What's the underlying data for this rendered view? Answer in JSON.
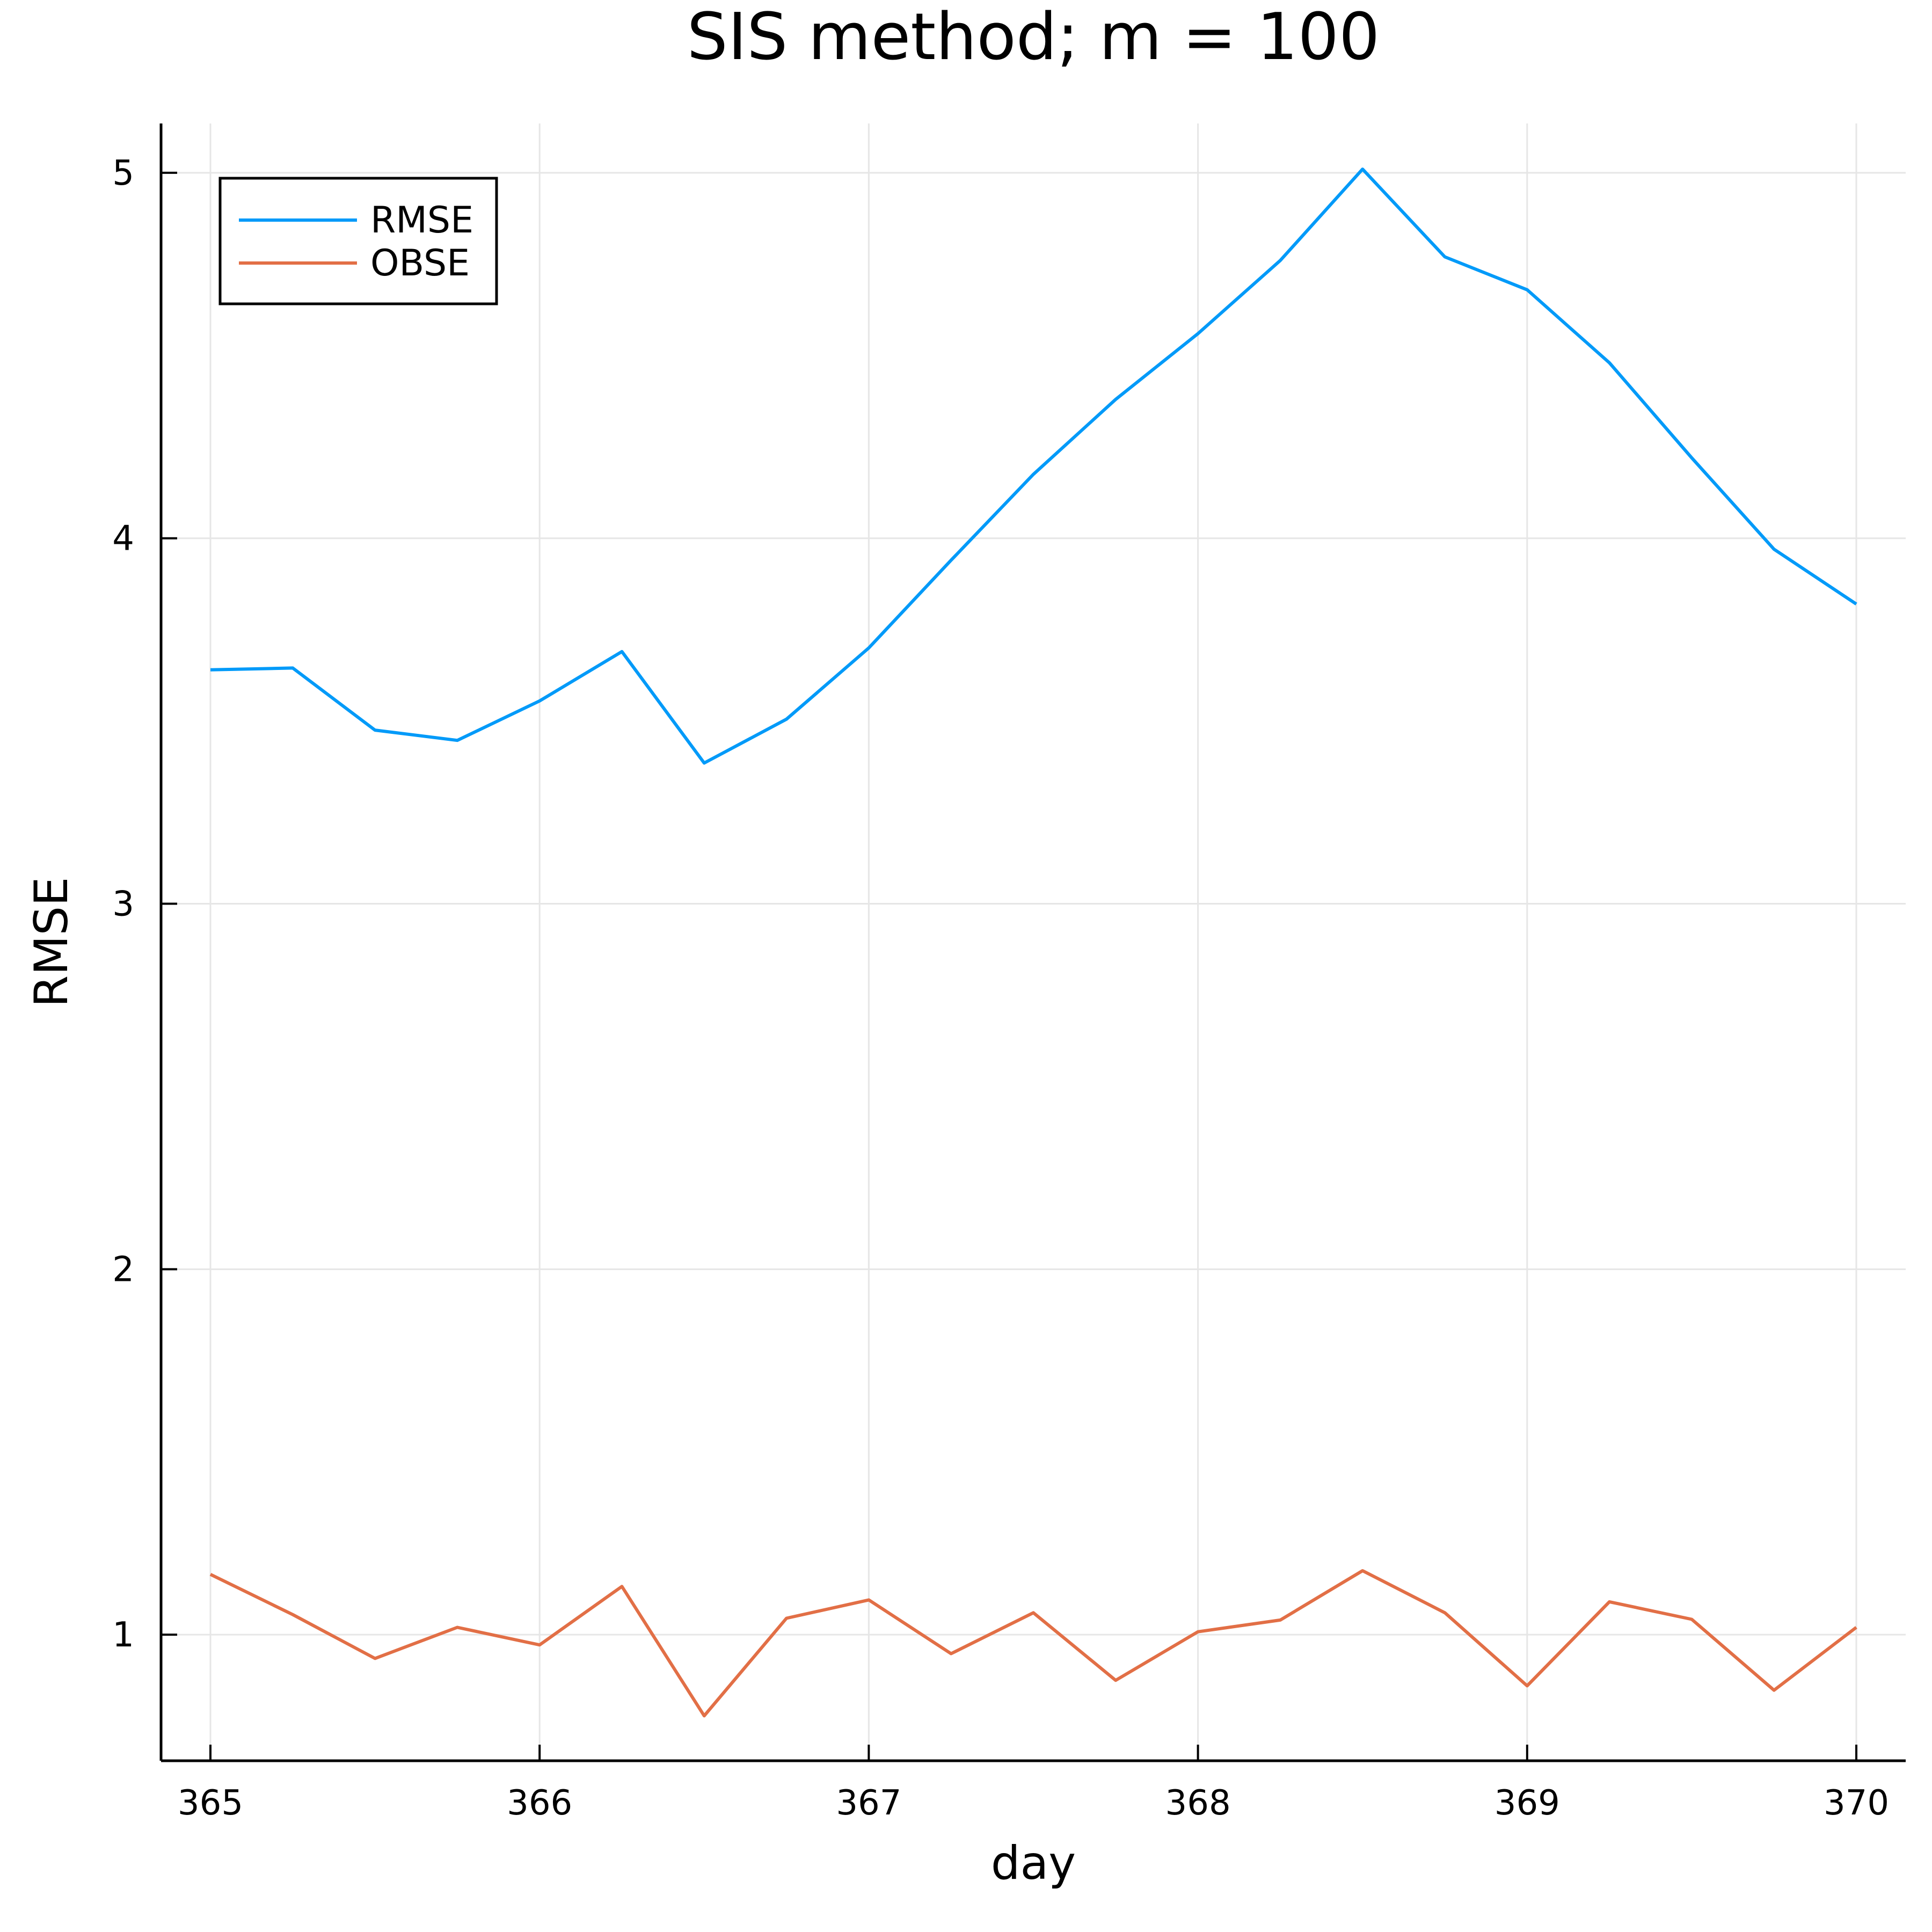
{
  "chart_data": {
    "type": "line",
    "title": "SIS method; m = 100",
    "xlabel": "day",
    "ylabel": "RMSE",
    "xlim": [
      364.85,
      370.15
    ],
    "ylim": [
      0.655,
      5.135
    ],
    "xticks": [
      365,
      366,
      367,
      368,
      369,
      370
    ],
    "yticks": [
      1,
      2,
      3,
      4,
      5
    ],
    "grid": true,
    "legend_position": "top-left",
    "x": [
      365,
      365.25,
      365.5,
      365.75,
      366,
      366.25,
      366.5,
      366.75,
      367,
      367.25,
      367.5,
      367.75,
      368,
      368.25,
      368.5,
      368.75,
      369,
      369.25,
      369.5,
      369.75,
      370
    ],
    "series": [
      {
        "name": "RMSE",
        "color": "#009af9",
        "values": [
          3.64,
          3.645,
          3.475,
          3.447,
          3.555,
          3.69,
          3.385,
          3.505,
          3.7,
          3.94,
          4.175,
          4.38,
          4.56,
          4.76,
          5.01,
          4.77,
          4.68,
          4.48,
          4.22,
          3.97,
          3.82
        ]
      },
      {
        "name": "OBSE",
        "color": "#e26f46",
        "values": [
          1.165,
          1.055,
          0.935,
          1.02,
          0.972,
          1.132,
          0.778,
          1.045,
          1.095,
          0.948,
          1.06,
          0.875,
          1.008,
          1.04,
          1.175,
          1.06,
          0.86,
          1.09,
          1.042,
          0.848,
          1.02
        ]
      }
    ],
    "colors": {
      "grid": "#e6e6e6",
      "axis": "#000000"
    }
  }
}
